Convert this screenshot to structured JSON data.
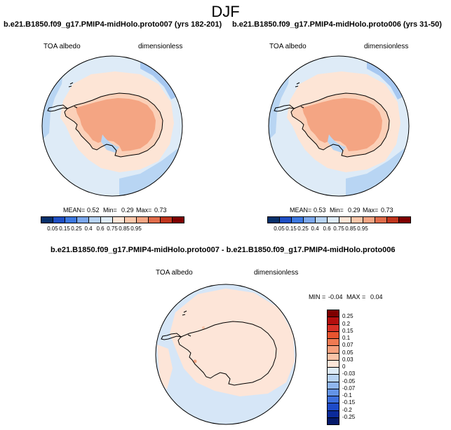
{
  "page_title": "DJF",
  "panels": [
    {
      "title": "b.e21.B1850.f09_g17.PMIP4-midHolo.proto007 (yrs 182-201)",
      "variable": "TOA albedo",
      "units": "dimensionless",
      "mean_label": "MEAN=",
      "mean": "0.52",
      "min_label": "Min=",
      "min": "0.29",
      "max_label": "Max=",
      "max": "0.73"
    },
    {
      "title": "b.e21.B1850.f09_g17.PMIP4-midHolo.proto006 (yrs 31-50)",
      "variable": "TOA albedo",
      "units": "dimensionless",
      "mean_label": "MEAN=",
      "mean": "0.53",
      "min_label": "Min=",
      "min": "0.29",
      "max_label": "Max=",
      "max": "0.73"
    }
  ],
  "diff_panel": {
    "title": "b.e21.B1850.f09_g17.PMIP4-midHolo.proto007 - b.e21.B1850.f09_g17.PMIP4-midHolo.proto006",
    "variable": "TOA albedo",
    "units": "dimensionless",
    "min_label": "MIN =",
    "min": "-0.04",
    "max_label": "MAX =",
    "max": "0.04"
  },
  "colors": {
    "ice": "#f4a583",
    "ice_edge": "#fbd0b8",
    "shelf": "#fde5d6",
    "ocean_light": "#deebf7",
    "ocean_mid": "#b8d5f3",
    "ocean_strip": "#a7c8f1",
    "diff_neutral": "#fde5d8",
    "diff_ocean": "#d6e6f7"
  },
  "chart_data": [
    {
      "type": "heatmap",
      "subtype": "polar stereographic map, Southern Hemisphere",
      "title": "b.e21.B1850.f09_g17.PMIP4-midHolo.proto007 (yrs 182-201)",
      "field": "TOA albedo",
      "units": "dimensionless",
      "mean": 0.52,
      "min": 0.29,
      "max": 0.73,
      "colorbar_levels": [
        "0.05",
        "0.15",
        "0.25",
        "0.4",
        "0.6",
        "0.75",
        "0.85",
        "0.95"
      ],
      "colorbar_colors": [
        "#08306b",
        "#1f4fc4",
        "#3c78e0",
        "#7ba7ec",
        "#b7d3f3",
        "#deebf7",
        "#fde5d6",
        "#fbc7aa",
        "#f4a583",
        "#e06c4a",
        "#c0351d",
        "#7f0000"
      ]
    },
    {
      "type": "heatmap",
      "subtype": "polar stereographic map, Southern Hemisphere",
      "title": "b.e21.B1850.f09_g17.PMIP4-midHolo.proto006 (yrs 31-50)",
      "field": "TOA albedo",
      "units": "dimensionless",
      "mean": 0.53,
      "min": 0.29,
      "max": 0.73,
      "colorbar_levels": [
        "0.05",
        "0.15",
        "0.25",
        "0.4",
        "0.6",
        "0.75",
        "0.85",
        "0.95"
      ],
      "colorbar_colors": [
        "#08306b",
        "#1f4fc4",
        "#3c78e0",
        "#7ba7ec",
        "#b7d3f3",
        "#deebf7",
        "#fde5d6",
        "#fbc7aa",
        "#f4a583",
        "#e06c4a",
        "#c0351d",
        "#7f0000"
      ]
    },
    {
      "type": "heatmap",
      "subtype": "polar stereographic difference map",
      "title": "b.e21.B1850.f09_g17.PMIP4-midHolo.proto007 - b.e21.B1850.f09_g17.PMIP4-midHolo.proto006",
      "field": "TOA albedo",
      "units": "dimensionless",
      "min": -0.04,
      "max": 0.04,
      "colorbar_levels": [
        "0.25",
        "0.2",
        "0.15",
        "0.1",
        "0.07",
        "0.05",
        "0.03",
        "0",
        "-0.03",
        "-0.05",
        "-0.07",
        "-0.1",
        "-0.15",
        "-0.2",
        "-0.25"
      ],
      "colorbar_colors": [
        "#7f0000",
        "#b40e0e",
        "#d73027",
        "#e8542f",
        "#f07a52",
        "#f6a07d",
        "#fbc4a8",
        "#fde5d8",
        "#deebf7",
        "#b8d3f3",
        "#8fb6ee",
        "#6494e6",
        "#3d6fdc",
        "#1e4bc8",
        "#0b2a9a",
        "#061a6b"
      ]
    }
  ]
}
